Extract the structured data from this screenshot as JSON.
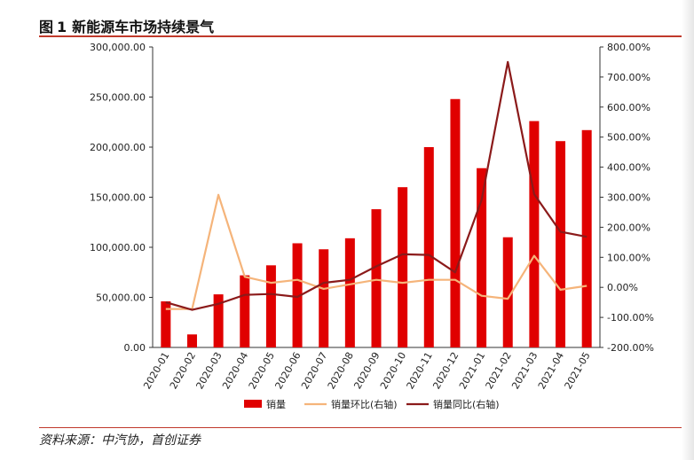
{
  "figure": {
    "label": "图",
    "number": "1",
    "title": "新能源车市场持续景气",
    "source": "资料来源：中汽协，首创证券"
  },
  "colors": {
    "bar": "#e00000",
    "mom_line": "#f5b47a",
    "yoy_line": "#8b1a1a",
    "rule": "#c0392b"
  },
  "chart_data": {
    "type": "bar+line",
    "categories": [
      "2020-01",
      "2020-02",
      "2020-03",
      "2020-04",
      "2020-05",
      "2020-06",
      "2020-07",
      "2020-08",
      "2020-09",
      "2020-10",
      "2020-11",
      "2020-12",
      "2021-01",
      "2021-02",
      "2021-03",
      "2021-04",
      "2021-05"
    ],
    "left_axis": {
      "min": 0,
      "max": 300000,
      "step": 50000,
      "ticks": [
        "0.00",
        "50,000.00",
        "100,000.00",
        "150,000.00",
        "200,000.00",
        "250,000.00",
        "300,000.00"
      ]
    },
    "right_axis": {
      "min": -200,
      "max": 800,
      "step": 100,
      "ticks": [
        "-200.00%",
        "-100.00%",
        "0.00%",
        "100.00%",
        "200.00%",
        "300.00%",
        "400.00%",
        "500.00%",
        "600.00%",
        "700.00%",
        "800.00%"
      ]
    },
    "series": [
      {
        "name": "销量",
        "type": "bar",
        "axis": "left",
        "values": [
          46000,
          13000,
          53000,
          72000,
          82000,
          104000,
          98000,
          109000,
          138000,
          160000,
          200000,
          248000,
          179000,
          110000,
          226000,
          206000,
          217000
        ]
      },
      {
        "name": "销量环比(右轴)",
        "type": "line",
        "axis": "right",
        "values": [
          -72,
          -72,
          308,
          35,
          15,
          25,
          -5,
          10,
          25,
          15,
          25,
          25,
          -28,
          -38,
          105,
          -8,
          5
        ]
      },
      {
        "name": "销量同比(右轴)",
        "type": "line",
        "axis": "right",
        "values": [
          -50,
          -75,
          -55,
          -25,
          -22,
          -32,
          15,
          25,
          70,
          110,
          108,
          50,
          290,
          750,
          310,
          185,
          168
        ]
      }
    ]
  }
}
